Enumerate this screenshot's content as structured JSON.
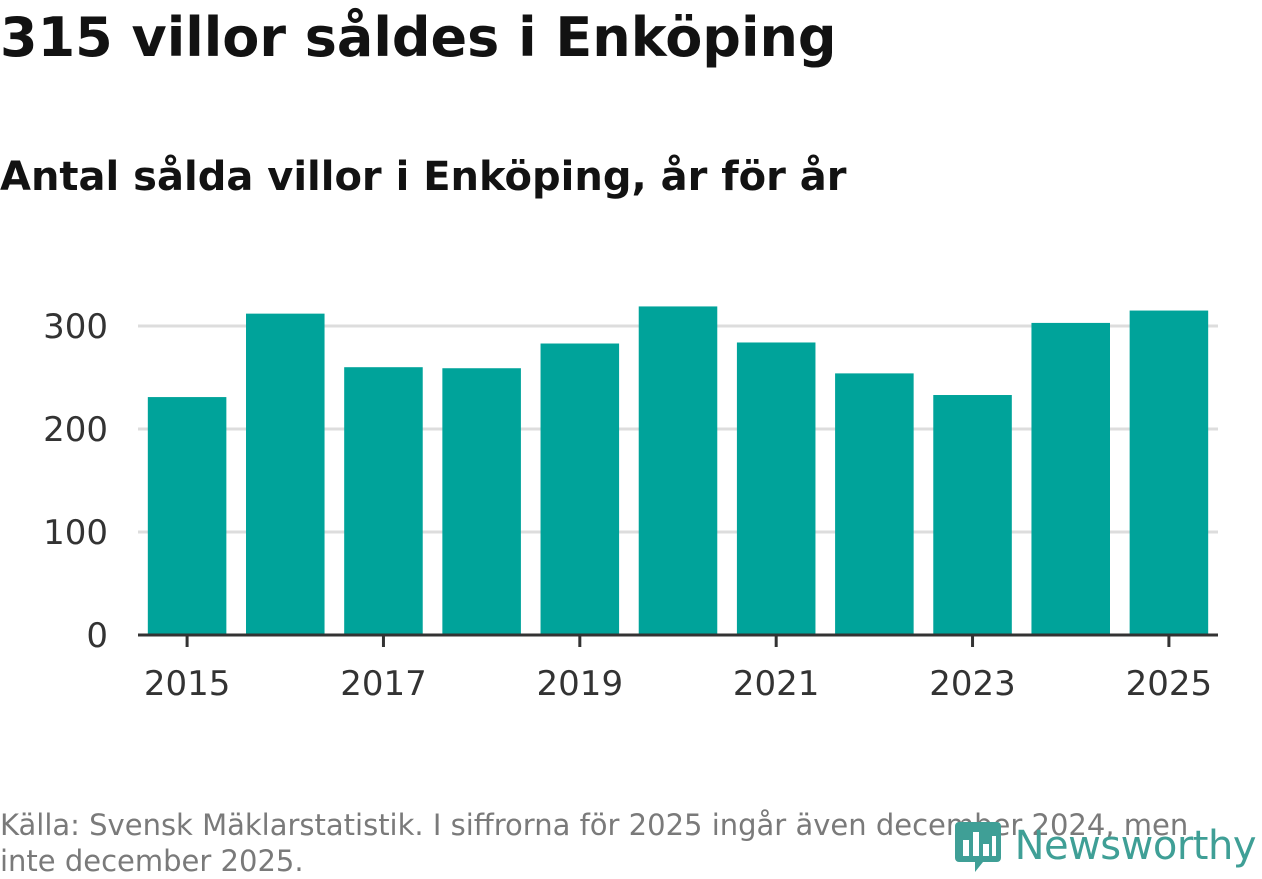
{
  "title": "315 villor såldes i Enköping",
  "subtitle": "Antal sålda villor i Enköping, år för år",
  "source": "Källa: Svensk Mäklarstatistik. I siffrorna för 2025 ingår även december 2024, men inte december 2025.",
  "logo": {
    "text": "Newsworthy",
    "icon": "newsworthy-chart-icon"
  },
  "colors": {
    "bar": "#00a39a",
    "grid": "#dddddd",
    "axis": "#333333",
    "logo": "#3f9f96"
  },
  "chart_data": {
    "type": "bar",
    "title": "Antal sålda villor i Enköping, år för år",
    "xlabel": "",
    "ylabel": "",
    "categories": [
      "2015",
      "2016",
      "2017",
      "2018",
      "2019",
      "2020",
      "2021",
      "2022",
      "2023",
      "2024",
      "2025"
    ],
    "values": [
      231,
      312,
      260,
      259,
      283,
      319,
      284,
      254,
      233,
      303,
      315
    ],
    "ylim": [
      0,
      330
    ],
    "yticks": [
      0,
      100,
      200,
      300
    ],
    "xtick_labels": [
      "2015",
      "2017",
      "2019",
      "2021",
      "2023",
      "2025"
    ],
    "grid": true,
    "legend": "none"
  }
}
